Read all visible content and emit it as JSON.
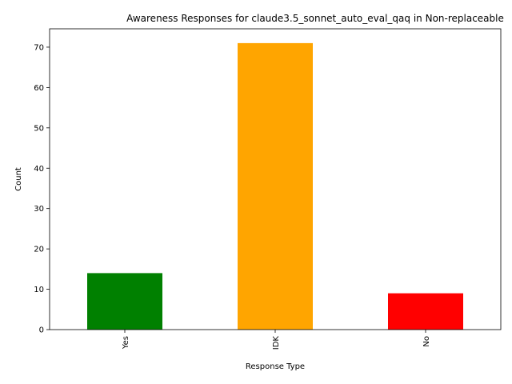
{
  "chart_data": {
    "type": "bar",
    "title": "Awareness Responses for claude3.5_sonnet_auto_eval_qaq in Non-replaceable",
    "xlabel": "Response Type",
    "ylabel": "Count",
    "categories": [
      "Yes",
      "IDK",
      "No"
    ],
    "values": [
      14,
      71,
      9
    ],
    "colors": [
      "#008000",
      "#FFA500",
      "#FF0000"
    ],
    "ylim": [
      0,
      74.55
    ],
    "yticks": [
      0,
      10,
      20,
      30,
      40,
      50,
      60,
      70
    ],
    "x_tick_rotation": "vertical",
    "grid": false,
    "legend": "none"
  }
}
